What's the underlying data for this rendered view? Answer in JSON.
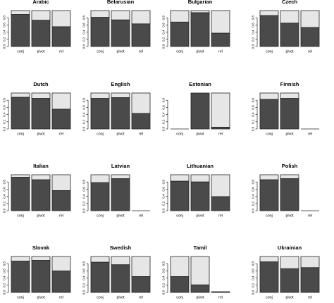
{
  "chart_data": [
    {
      "type": "bar",
      "title": "Arabic",
      "categories": [
        "conj",
        "pivot",
        "rel"
      ],
      "ylim": [
        0,
        1
      ],
      "yticks": [
        "0.0",
        "0.2",
        "0.4",
        "0.6",
        "0.8"
      ],
      "series": [
        {
          "values": [
            0.89,
            0.73,
            0.55
          ]
        },
        {
          "values": [
            0.11,
            0.27,
            0.45
          ]
        }
      ]
    },
    {
      "type": "bar",
      "title": "Belarusian",
      "categories": [
        "conj",
        "pivot",
        "rel"
      ],
      "ylim": [
        0,
        1
      ],
      "yticks": [
        "0.0",
        "0.2",
        "0.4",
        "0.6",
        "0.8"
      ],
      "series": [
        {
          "values": [
            0.81,
            0.74,
            0.63
          ]
        },
        {
          "values": [
            0.19,
            0.26,
            0.37
          ]
        }
      ]
    },
    {
      "type": "bar",
      "title": "Bulgarian",
      "categories": [
        "conj",
        "pivot",
        "rel"
      ],
      "ylim": [
        0,
        1
      ],
      "yticks": [
        "0.0",
        "0.2",
        "0.4",
        "0.6",
        "0.8"
      ],
      "series": [
        {
          "values": [
            0.68,
            0.94,
            0.37
          ]
        },
        {
          "values": [
            0.32,
            0.06,
            0.63
          ]
        }
      ]
    },
    {
      "type": "bar",
      "title": "Czech",
      "categories": [
        "conj",
        "pivot",
        "rel"
      ],
      "ylim": [
        0,
        1
      ],
      "yticks": [
        "0.0",
        "0.2",
        "0.4",
        "0.6",
        "0.8"
      ],
      "series": [
        {
          "values": [
            0.86,
            0.65,
            0.53
          ]
        },
        {
          "values": [
            0.14,
            0.35,
            0.47
          ]
        }
      ]
    },
    {
      "type": "bar",
      "title": "Dutch",
      "categories": [
        "conj",
        "pivot",
        "rel"
      ],
      "ylim": [
        0,
        1
      ],
      "yticks": [
        "0.0",
        "0.2",
        "0.4",
        "0.6",
        "0.8"
      ],
      "series": [
        {
          "values": [
            0.88,
            0.85,
            0.55
          ]
        },
        {
          "values": [
            0.12,
            0.15,
            0.45
          ]
        }
      ]
    },
    {
      "type": "bar",
      "title": "English",
      "categories": [
        "conj",
        "pivot",
        "rel"
      ],
      "ylim": [
        0,
        1
      ],
      "yticks": [
        "0.0",
        "0.2",
        "0.4",
        "0.6",
        "0.8"
      ],
      "series": [
        {
          "values": [
            0.85,
            0.87,
            0.43
          ]
        },
        {
          "values": [
            0.15,
            0.13,
            0.57
          ]
        }
      ]
    },
    {
      "type": "bar",
      "title": "Estonian",
      "categories": [
        "conj",
        "pivot",
        "rel"
      ],
      "ylim": [
        0,
        1
      ],
      "yticks": [
        "0.0",
        "0.2",
        "0.4",
        "0.6",
        "0.8"
      ],
      "series": [
        {
          "values": [
            0,
            1.0,
            0.05
          ]
        },
        {
          "values": [
            0,
            0,
            0.95
          ]
        }
      ]
    },
    {
      "type": "bar",
      "title": "Finnish",
      "categories": [
        "conj",
        "pivot",
        "rel"
      ],
      "ylim": [
        0,
        1
      ],
      "yticks": [
        "0.0",
        "0.2",
        "0.4",
        "0.6",
        "0.8"
      ],
      "series": [
        {
          "values": [
            0.82,
            0.85,
            0
          ]
        },
        {
          "values": [
            0.18,
            0.15,
            0
          ]
        }
      ]
    },
    {
      "type": "bar",
      "title": "Italian",
      "categories": [
        "conj",
        "pivot",
        "rel"
      ],
      "ylim": [
        0,
        1
      ],
      "yticks": [
        "0.0",
        "0.2",
        "0.4",
        "0.6",
        "0.8"
      ],
      "series": [
        {
          "values": [
            0.93,
            0.86,
            0.56
          ]
        },
        {
          "values": [
            0.07,
            0.14,
            0.44
          ]
        }
      ]
    },
    {
      "type": "bar",
      "title": "Latvian",
      "categories": [
        "conj",
        "pivot",
        "rel"
      ],
      "ylim": [
        0,
        1
      ],
      "yticks": [
        "0.0",
        "0.2",
        "0.4",
        "0.6",
        "0.8"
      ],
      "series": [
        {
          "values": [
            0.78,
            0.89,
            0
          ]
        },
        {
          "values": [
            0.22,
            0.11,
            0
          ]
        }
      ]
    },
    {
      "type": "bar",
      "title": "Lithuanian",
      "categories": [
        "conj",
        "pivot",
        "rel"
      ],
      "ylim": [
        0,
        1
      ],
      "yticks": [
        "0.0",
        "0.2",
        "0.4",
        "0.6",
        "0.8"
      ],
      "series": [
        {
          "values": [
            0.82,
            0.8,
            0.39
          ]
        },
        {
          "values": [
            0.18,
            0.2,
            0.61
          ]
        }
      ]
    },
    {
      "type": "bar",
      "title": "Polish",
      "categories": [
        "conj",
        "pivot",
        "rel"
      ],
      "ylim": [
        0,
        1
      ],
      "yticks": [
        "0.0",
        "0.2",
        "0.4",
        "0.6",
        "0.8"
      ],
      "series": [
        {
          "values": [
            0.86,
            0.89,
            0
          ]
        },
        {
          "values": [
            0.14,
            0.11,
            0
          ]
        }
      ]
    },
    {
      "type": "bar",
      "title": "Slovak",
      "categories": [
        "conj",
        "pivot",
        "rel"
      ],
      "ylim": [
        0,
        1
      ],
      "yticks": [
        "0.0",
        "0.2",
        "0.4",
        "0.6",
        "0.8"
      ],
      "series": [
        {
          "values": [
            0.87,
            0.89,
            0.6
          ]
        },
        {
          "values": [
            0.13,
            0.11,
            0.4
          ]
        }
      ]
    },
    {
      "type": "bar",
      "title": "Swedish",
      "categories": [
        "conj",
        "pivot",
        "rel"
      ],
      "ylim": [
        0,
        1
      ],
      "yticks": [
        "0.0",
        "0.2",
        "0.4",
        "0.6",
        "0.8"
      ],
      "series": [
        {
          "values": [
            0.84,
            0.77,
            0.44
          ]
        },
        {
          "values": [
            0.16,
            0.23,
            0.56
          ]
        }
      ]
    },
    {
      "type": "bar",
      "title": "Tamil",
      "categories": [
        "conj",
        "pivot",
        "rel"
      ],
      "ylim": [
        0,
        1
      ],
      "yticks": [
        "0.0",
        "0.2",
        "0.4",
        "0.6",
        "0.8"
      ],
      "series": [
        {
          "values": [
            0.44,
            0.21,
            0.02
          ]
        },
        {
          "values": [
            0.56,
            0.79,
            0
          ]
        }
      ]
    },
    {
      "type": "bar",
      "title": "Ukrainian",
      "categories": [
        "conj",
        "pivot",
        "rel"
      ],
      "ylim": [
        0,
        1
      ],
      "yticks": [
        "0.0",
        "0.2",
        "0.4",
        "0.6",
        "0.8"
      ],
      "series": [
        {
          "values": [
            0.85,
            0.66,
            0.69
          ]
        },
        {
          "values": [
            0.15,
            0.34,
            0.31
          ]
        }
      ]
    }
  ],
  "colors": {
    "lower": "#4a4a4a",
    "upper": "#e6e6e6",
    "border": "#222222"
  }
}
